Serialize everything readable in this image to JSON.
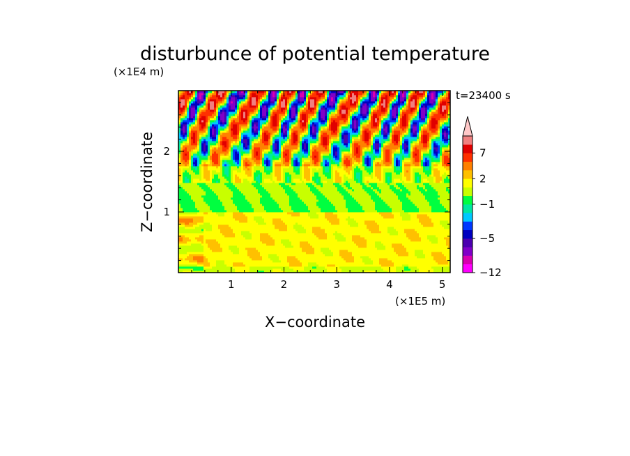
{
  "chart_data": {
    "type": "heatmap",
    "title": "disturbunce of potential temperature",
    "xlabel": "X−coordinate",
    "ylabel": "Z−coordinate",
    "x_unit": "(×1E5 m)",
    "y_unit": "(×1E4 m)",
    "time_label": "t=23400 s",
    "xlim": [
      0,
      5.15
    ],
    "ylim": [
      0,
      3.0
    ],
    "x_ticks": [
      1,
      2,
      3,
      4,
      5
    ],
    "y_ticks": [
      1,
      2
    ],
    "x_tick_labels": [
      "1",
      "2",
      "3",
      "4",
      "5"
    ],
    "y_tick_labels": [
      "1",
      "2"
    ],
    "colorbar": {
      "levels": [
        -12,
        -10,
        -8,
        -6,
        -5,
        -4,
        -3,
        -2,
        -1,
        0,
        1,
        2,
        3,
        5,
        7,
        9,
        11
      ],
      "tick_labels": [
        "7",
        "2",
        "−1",
        "−5",
        "−12"
      ],
      "colors": [
        "#ff00ff",
        "#d800b0",
        "#8000c8",
        "#4b00b0",
        "#0000c0",
        "#0038ff",
        "#00c8ff",
        "#00e8a0",
        "#00ff40",
        "#c8ff00",
        "#ffff00",
        "#ffc000",
        "#ff8000",
        "#ff3000",
        "#e00000",
        "#f08080",
        "#ffc8c8"
      ],
      "extend": "max"
    },
    "field": {
      "description_of_structure": "Layered disturbance field with mostly +1 to +3 near the surface, near zero around Z=1-1.5, and alternating strong positive/negative tilted wave features above Z=1.5",
      "bands_by_z": [
        {
          "z_range": [
            0,
            1.0
          ],
          "typical_value": 1.5
        },
        {
          "z_range": [
            1.0,
            1.5
          ],
          "typical_value": 0
        },
        {
          "z_range": [
            1.5,
            3.0
          ],
          "typical_value": "oscillating -5 to 7"
        }
      ]
    }
  }
}
